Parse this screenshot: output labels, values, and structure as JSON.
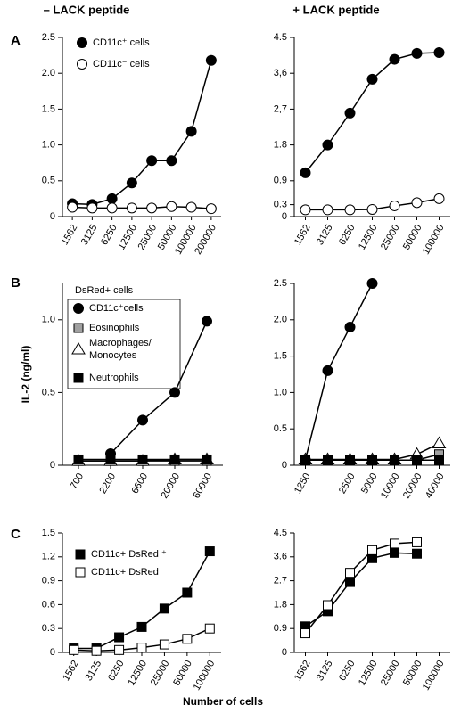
{
  "headers": [
    "– LACK peptide",
    "+ LACK peptide"
  ],
  "panels": [
    "A",
    "B",
    "C"
  ],
  "xlabel": "Number of cells",
  "chart_data": [
    {
      "type": "line",
      "legend": "upper left",
      "categories": [
        "1562",
        "3125",
        "6250",
        "12500",
        "25000",
        "50000",
        "100000",
        "200000"
      ],
      "ylim": [
        0,
        2.5
      ],
      "yticks": [
        0,
        0.5,
        {
          "value": 1,
          "label": "1.0"
        },
        1.5,
        {
          "value": 2,
          "label": "2.0"
        },
        2.5
      ],
      "series": [
        {
          "name": "CD11c⁺ cells",
          "color": "#000000",
          "marker": "circle",
          "values": [
            0.18,
            0.17,
            0.25,
            0.47,
            0.78,
            0.78,
            1.19,
            2.18
          ]
        },
        {
          "name": "CD11c⁻ cells",
          "color": "#ffffff",
          "marker": "circle",
          "values": [
            0.13,
            0.12,
            0.12,
            0.12,
            0.12,
            0.14,
            0.13,
            0.11
          ]
        }
      ]
    },
    {
      "type": "line",
      "categories": [
        "1562",
        "3125",
        "6250",
        "12500",
        "25000",
        "50000",
        "100000"
      ],
      "ylim": [
        0,
        4.5
      ],
      "yticks": [
        0,
        0.3,
        0.9,
        1.8,
        {
          "value": 2.7,
          "label": "2,7"
        },
        {
          "value": 3.6,
          "label": "3,6"
        },
        4.5
      ],
      "series": [
        {
          "color": "#000000",
          "marker": "circle",
          "values": [
            1.1,
            1.8,
            2.6,
            3.45,
            3.95,
            4.1,
            4.12
          ]
        },
        {
          "color": "#ffffff",
          "marker": "circle",
          "values": [
            0.17,
            0.17,
            0.17,
            0.18,
            0.27,
            0.35,
            0.45
          ]
        }
      ]
    },
    {
      "type": "line",
      "legend": "upper left",
      "legend_title": "DsRed+ cells",
      "ylabel": "IL-2 (ng/ml)",
      "categories": [
        "700",
        "2200",
        "6600",
        "20000",
        "60000"
      ],
      "ylim": [
        0,
        1.25
      ],
      "yticks": [
        0,
        0.5,
        {
          "value": 1,
          "label": "1.0"
        }
      ],
      "series": [
        {
          "name": "CD11c⁺cells",
          "color": "#000000",
          "marker": "circle",
          "values": [
            null,
            0.08,
            0.31,
            0.5,
            0.99
          ]
        },
        {
          "name": "Eosinophils",
          "color": "#a0a0a0",
          "marker": "square",
          "values": [
            0.03,
            0.03,
            0.03,
            0.03,
            0.03
          ]
        },
        {
          "name": "Macrophages/ Monocytes",
          "color": "#ffffff",
          "marker": "triangle",
          "values": [
            0.03,
            0.03,
            0.03,
            0.04,
            0.04
          ]
        },
        {
          "name": "Neutrophils",
          "color": "#000000",
          "marker": "square",
          "values": [
            0.04,
            0.04,
            0.04,
            0.04,
            0.04
          ]
        }
      ]
    },
    {
      "type": "line",
      "categories": [
        "1250",
        null,
        "2500",
        "5000",
        "10000",
        "20000",
        "40000"
      ],
      "ylim": [
        0,
        2.5
      ],
      "yticks": [
        0,
        0.5,
        {
          "value": 1,
          "label": "1.0"
        },
        1.5,
        {
          "value": 2,
          "label": "2.0"
        },
        2.5
      ],
      "series": [
        {
          "color": "#000000",
          "marker": "circle",
          "values": [
            0.08,
            1.3,
            1.9,
            2.5,
            null,
            null,
            null
          ]
        },
        {
          "color": "#a0a0a0",
          "marker": "square",
          "values": [
            0.07,
            0.07,
            0.07,
            0.07,
            0.07,
            0.07,
            0.15
          ]
        },
        {
          "color": "#ffffff",
          "marker": "triangle",
          "values": [
            0.08,
            0.08,
            0.08,
            0.08,
            0.08,
            0.15,
            0.3
          ]
        },
        {
          "color": "#000000",
          "marker": "square",
          "values": [
            0.07,
            0.07,
            0.07,
            0.07,
            0.07,
            0.07,
            0.07
          ]
        }
      ]
    },
    {
      "type": "line",
      "legend": "upper left",
      "categories": [
        "1562",
        "3125",
        "6250",
        "12500",
        "25000",
        "50000",
        "100000"
      ],
      "ylim": [
        0,
        1.5
      ],
      "yticks": [
        0,
        0.3,
        0.6,
        0.9,
        1.2,
        1.5
      ],
      "series": [
        {
          "name": "CD11c+ DsRed ⁺",
          "color": "#000000",
          "marker": "square",
          "values": [
            0.05,
            0.05,
            0.19,
            0.32,
            0.55,
            0.75,
            1.27
          ]
        },
        {
          "name": "CD11c+ DsRed ⁻",
          "color": "#ffffff",
          "marker": "square",
          "values": [
            0.03,
            0.02,
            0.03,
            0.06,
            0.1,
            0.17,
            0.3
          ]
        }
      ]
    },
    {
      "type": "line",
      "categories": [
        "1562",
        "3125",
        "6250",
        "12500",
        "25000",
        "50000",
        "100000"
      ],
      "ylim": [
        0,
        4.5
      ],
      "yticks": [
        0,
        0.9,
        1.8,
        2.7,
        3.6,
        4.5
      ],
      "series": [
        {
          "color": "#000000",
          "marker": "square",
          "values": [
            0.98,
            1.55,
            2.65,
            3.55,
            3.75,
            3.72,
            null
          ]
        },
        {
          "color": "#ffffff",
          "marker": "square",
          "values": [
            0.72,
            1.78,
            3.0,
            3.85,
            4.1,
            4.15,
            null
          ]
        }
      ]
    }
  ]
}
